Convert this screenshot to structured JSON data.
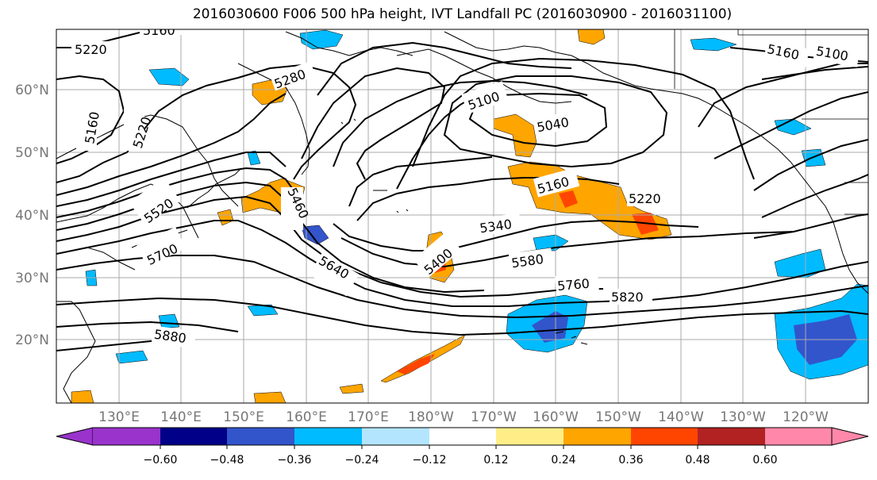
{
  "title": "2016030600 F006 500 hPa height, IVT Landfall PC (2016030900 - 2016031100)",
  "axes": {
    "lat_labels": [
      "60°N",
      "50°N",
      "40°N",
      "30°N",
      "20°N"
    ],
    "lon_labels": [
      "130°E",
      "140°E",
      "150°E",
      "160°E",
      "170°E",
      "180°W",
      "170°W",
      "160°W",
      "150°W",
      "140°W",
      "130°W",
      "120°W"
    ]
  },
  "contour_labels": {
    "c5160a": "5160",
    "c5220a": "5220",
    "c5280": "5280",
    "c5160b": "5160",
    "c5220b": "5220",
    "c5520": "5520",
    "c5460": "5460",
    "c5700": "5700",
    "c5640": "5640",
    "c5880": "5880",
    "c5100a": "5100",
    "c5040": "5040",
    "c5160c": "5160",
    "c5220c": "5220",
    "c5340": "5340",
    "c5400": "5400",
    "c5580": "5580",
    "c5760": "5760",
    "c5820": "5820",
    "c5160d": "5160",
    "c5100b": "5100"
  },
  "colorbar": {
    "ticks": [
      "−0.60",
      "−0.48",
      "−0.36",
      "−0.24",
      "−0.12",
      "0.12",
      "0.24",
      "0.36",
      "0.48",
      "0.60"
    ],
    "colors": [
      "#9933cc",
      "#000088",
      "#3355cc",
      "#00bbff",
      "#b3e5ff",
      "#ffffff",
      "#ffee88",
      "#ffa500",
      "#ff4500",
      "#b22222",
      "#ff88aa"
    ],
    "values": [
      -0.6,
      -0.48,
      -0.36,
      -0.24,
      -0.12,
      0.12,
      0.24,
      0.36,
      0.48,
      0.6
    ]
  },
  "colors": {
    "grid": "#aaaaaa",
    "contour": "#000000",
    "coast": "#000000",
    "tick_label": "#777777"
  }
}
